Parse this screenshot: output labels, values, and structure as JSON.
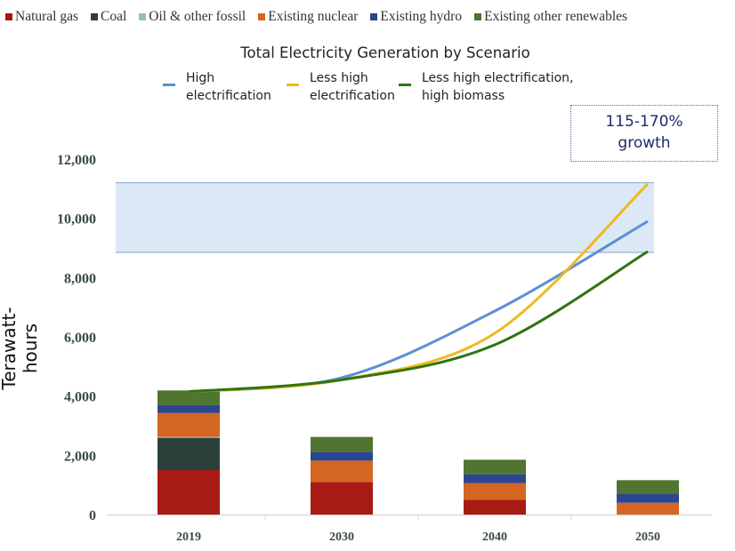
{
  "chart_data": {
    "type": "bar",
    "title": "Total Electricity Generation by Scenario",
    "ylabel": "Terawatt-hours",
    "xlabel": "",
    "ylim": [
      0,
      12000
    ],
    "yticks": [
      "0",
      "2,000",
      "4,000",
      "6,000",
      "8,000",
      "10,000",
      "12,000"
    ],
    "ytick_values": [
      0,
      2000,
      4000,
      6000,
      8000,
      10000,
      12000
    ],
    "categories": [
      "2019",
      "2030",
      "2040",
      "2050"
    ],
    "grid": false,
    "legend": "top",
    "bar_series": [
      {
        "name": "Natural gas",
        "color": "#a81a14",
        "values": [
          1500,
          1100,
          500,
          0
        ]
      },
      {
        "name": "Coal",
        "color": "#2b403b",
        "values": [
          1090,
          0,
          0,
          0
        ]
      },
      {
        "name": "Oil & other fossil",
        "color": "#8fc3b0",
        "values": [
          30,
          0,
          0,
          0
        ]
      },
      {
        "name": "Existing nuclear",
        "color": "#d46622",
        "values": [
          810,
          720,
          560,
          400
        ]
      },
      {
        "name": "Existing hydro",
        "color": "#2c4590",
        "values": [
          270,
          300,
          300,
          290
        ]
      },
      {
        "name": "Existing other renewables",
        "color": "#4f7530",
        "values": [
          490,
          500,
          490,
          470
        ]
      }
    ],
    "line_series": [
      {
        "name": "High electrification",
        "color": "#5b8fd6",
        "values": [
          4150,
          4620,
          6870,
          9900
        ]
      },
      {
        "name": "Less high electrification",
        "color": "#f0b820",
        "values": [
          4150,
          4550,
          6120,
          11160
        ]
      },
      {
        "name": "Less high electrification, high biomass",
        "color": "#2e7510",
        "values": [
          4150,
          4550,
          5730,
          8880
        ]
      }
    ],
    "line_legend": [
      {
        "line1": "High",
        "line2": "electrification"
      },
      {
        "line1": "Less high",
        "line2": "electrification"
      },
      {
        "line1": "Less high electrification,",
        "line2": "high biomass"
      }
    ],
    "growth_band": {
      "low": 8850,
      "high": 11200,
      "color": "#dce8f6"
    },
    "annotation": {
      "line1": "115-170%",
      "line2": "growth"
    }
  }
}
